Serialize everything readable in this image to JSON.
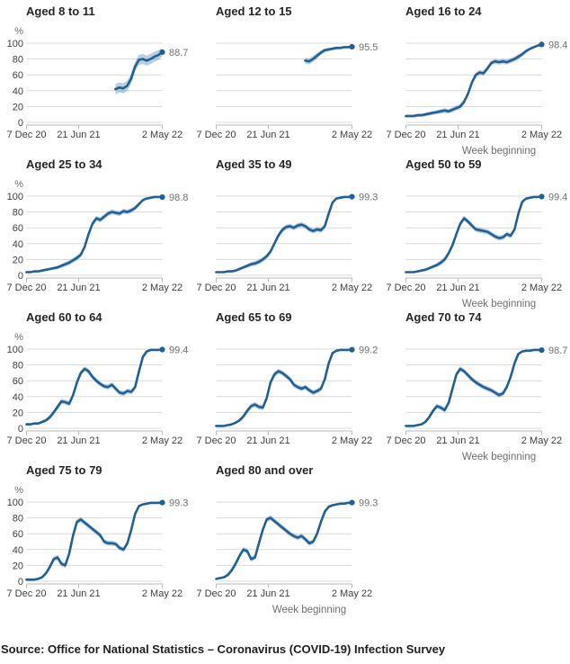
{
  "page": {
    "source_note": "Source: Office for National Statistics – Coronavirus (COVID-19) Infection Survey"
  },
  "colors": {
    "line": "#206095",
    "band": "rgba(32,96,149,0.30)",
    "grid": "#d9d9d9",
    "axis": "#b9b9b9",
    "title": "#262626",
    "tick": "#414042",
    "muted": "#707071"
  },
  "axes": {
    "y_unit": "%",
    "y_ticks": [
      0,
      20,
      40,
      60,
      80,
      100
    ],
    "y_range": [
      0,
      100
    ],
    "x_axis_label": "Week beginning",
    "x_ticks": [
      {
        "label": "7 Dec 20",
        "pos": 0
      },
      {
        "label": "21 Jun 21",
        "pos": 0.384
      },
      {
        "label": "2 May 22",
        "pos": 1
      }
    ],
    "grid": true,
    "legend": "none"
  },
  "chart_data": [
    {
      "type": "line",
      "title": "Aged 8 to 11",
      "final_value": 88.7,
      "final_label": "88.7",
      "x_start": 0.655,
      "band_scale": 2.0,
      "values": [
        42,
        44,
        43,
        46,
        55,
        70,
        79,
        80,
        78,
        80,
        83,
        85,
        88.7
      ]
    },
    {
      "type": "line",
      "title": "Aged 12 to 15",
      "final_value": 95.5,
      "final_label": "95.5",
      "x_start": 0.655,
      "band_scale": 1.2,
      "values": [
        78,
        77,
        80,
        84,
        88,
        91,
        92,
        93,
        94,
        94,
        95,
        95,
        95.5
      ]
    },
    {
      "type": "line",
      "title": "Aged 16 to 24",
      "final_value": 98.4,
      "final_label": "98.4",
      "x_start": 0,
      "band_scale": 1.0,
      "values": [
        8,
        8,
        8,
        9,
        9,
        10,
        11,
        12,
        13,
        14,
        15,
        14,
        16,
        18,
        20,
        26,
        36,
        50,
        60,
        63,
        62,
        68,
        75,
        77,
        76,
        77,
        76,
        78,
        80,
        83,
        86,
        90,
        93,
        95,
        97,
        98.4
      ]
    },
    {
      "type": "line",
      "title": "Aged 25 to 34",
      "final_value": 98.8,
      "final_label": "98.8",
      "x_start": 0,
      "band_scale": 1.0,
      "values": [
        4,
        4,
        5,
        5,
        6,
        7,
        8,
        9,
        10,
        12,
        14,
        16,
        19,
        22,
        26,
        36,
        52,
        65,
        72,
        70,
        74,
        78,
        80,
        79,
        78,
        81,
        80,
        82,
        85,
        90,
        95,
        97,
        98,
        99,
        99,
        98.8
      ]
    },
    {
      "type": "line",
      "title": "Aged 35 to 49",
      "final_value": 99.3,
      "final_label": "99.3",
      "x_start": 0,
      "band_scale": 1.0,
      "values": [
        4,
        4,
        4,
        5,
        5,
        6,
        8,
        10,
        12,
        14,
        15,
        17,
        20,
        24,
        30,
        40,
        50,
        57,
        61,
        62,
        60,
        63,
        64,
        62,
        58,
        56,
        58,
        57,
        62,
        78,
        92,
        97,
        98,
        99,
        99,
        99.3
      ]
    },
    {
      "type": "line",
      "title": "Aged 50 to 59",
      "final_value": 99.4,
      "final_label": "99.4",
      "x_start": 0,
      "band_scale": 1.0,
      "values": [
        4,
        4,
        4,
        5,
        6,
        7,
        9,
        11,
        13,
        16,
        20,
        28,
        38,
        52,
        65,
        72,
        68,
        63,
        58,
        57,
        56,
        55,
        52,
        49,
        47,
        48,
        52,
        50,
        58,
        78,
        93,
        97,
        98,
        99,
        99,
        99.4
      ]
    },
    {
      "type": "line",
      "title": "Aged 60 to 64",
      "final_value": 99.4,
      "final_label": "99.4",
      "x_start": 0,
      "band_scale": 1.0,
      "values": [
        5,
        5,
        6,
        6,
        8,
        10,
        14,
        20,
        27,
        34,
        33,
        31,
        42,
        58,
        70,
        75,
        72,
        65,
        60,
        56,
        53,
        52,
        55,
        50,
        45,
        44,
        47,
        46,
        52,
        72,
        90,
        97,
        99,
        99,
        99,
        99.4
      ]
    },
    {
      "type": "line",
      "title": "Aged 65 to 69",
      "final_value": 99.2,
      "final_label": "99.2",
      "x_start": 0,
      "band_scale": 1.0,
      "values": [
        3,
        3,
        3,
        4,
        5,
        7,
        10,
        15,
        22,
        28,
        30,
        27,
        26,
        38,
        58,
        68,
        72,
        70,
        66,
        62,
        55,
        52,
        50,
        52,
        48,
        45,
        47,
        50,
        62,
        82,
        95,
        98,
        99,
        99,
        99,
        99.2
      ]
    },
    {
      "type": "line",
      "title": "Aged 70 to 74",
      "final_value": 98.7,
      "final_label": "98.7",
      "x_start": 0,
      "band_scale": 1.0,
      "values": [
        3,
        3,
        3,
        4,
        5,
        8,
        14,
        22,
        28,
        26,
        23,
        32,
        50,
        68,
        75,
        72,
        67,
        62,
        58,
        55,
        52,
        50,
        48,
        45,
        42,
        44,
        52,
        65,
        82,
        94,
        97,
        98,
        98,
        99,
        99,
        98.7
      ]
    },
    {
      "type": "line",
      "title": "Aged 75 to 79",
      "final_value": 99.3,
      "final_label": "99.3",
      "x_start": 0,
      "band_scale": 1.0,
      "values": [
        2,
        2,
        2,
        3,
        5,
        10,
        18,
        28,
        30,
        22,
        20,
        35,
        58,
        75,
        78,
        74,
        70,
        66,
        62,
        58,
        50,
        48,
        48,
        47,
        42,
        40,
        48,
        65,
        85,
        95,
        97,
        98,
        99,
        99,
        99,
        99.3
      ]
    },
    {
      "type": "line",
      "title": "Aged 80 and over",
      "final_value": 99.3,
      "final_label": "99.3",
      "x_start": 0,
      "band_scale": 1.0,
      "values": [
        3,
        4,
        5,
        8,
        14,
        22,
        32,
        40,
        38,
        28,
        30,
        48,
        65,
        78,
        80,
        76,
        72,
        68,
        64,
        60,
        57,
        55,
        57,
        53,
        48,
        50,
        60,
        75,
        88,
        94,
        96,
        97,
        98,
        98,
        99,
        99.3
      ]
    }
  ]
}
